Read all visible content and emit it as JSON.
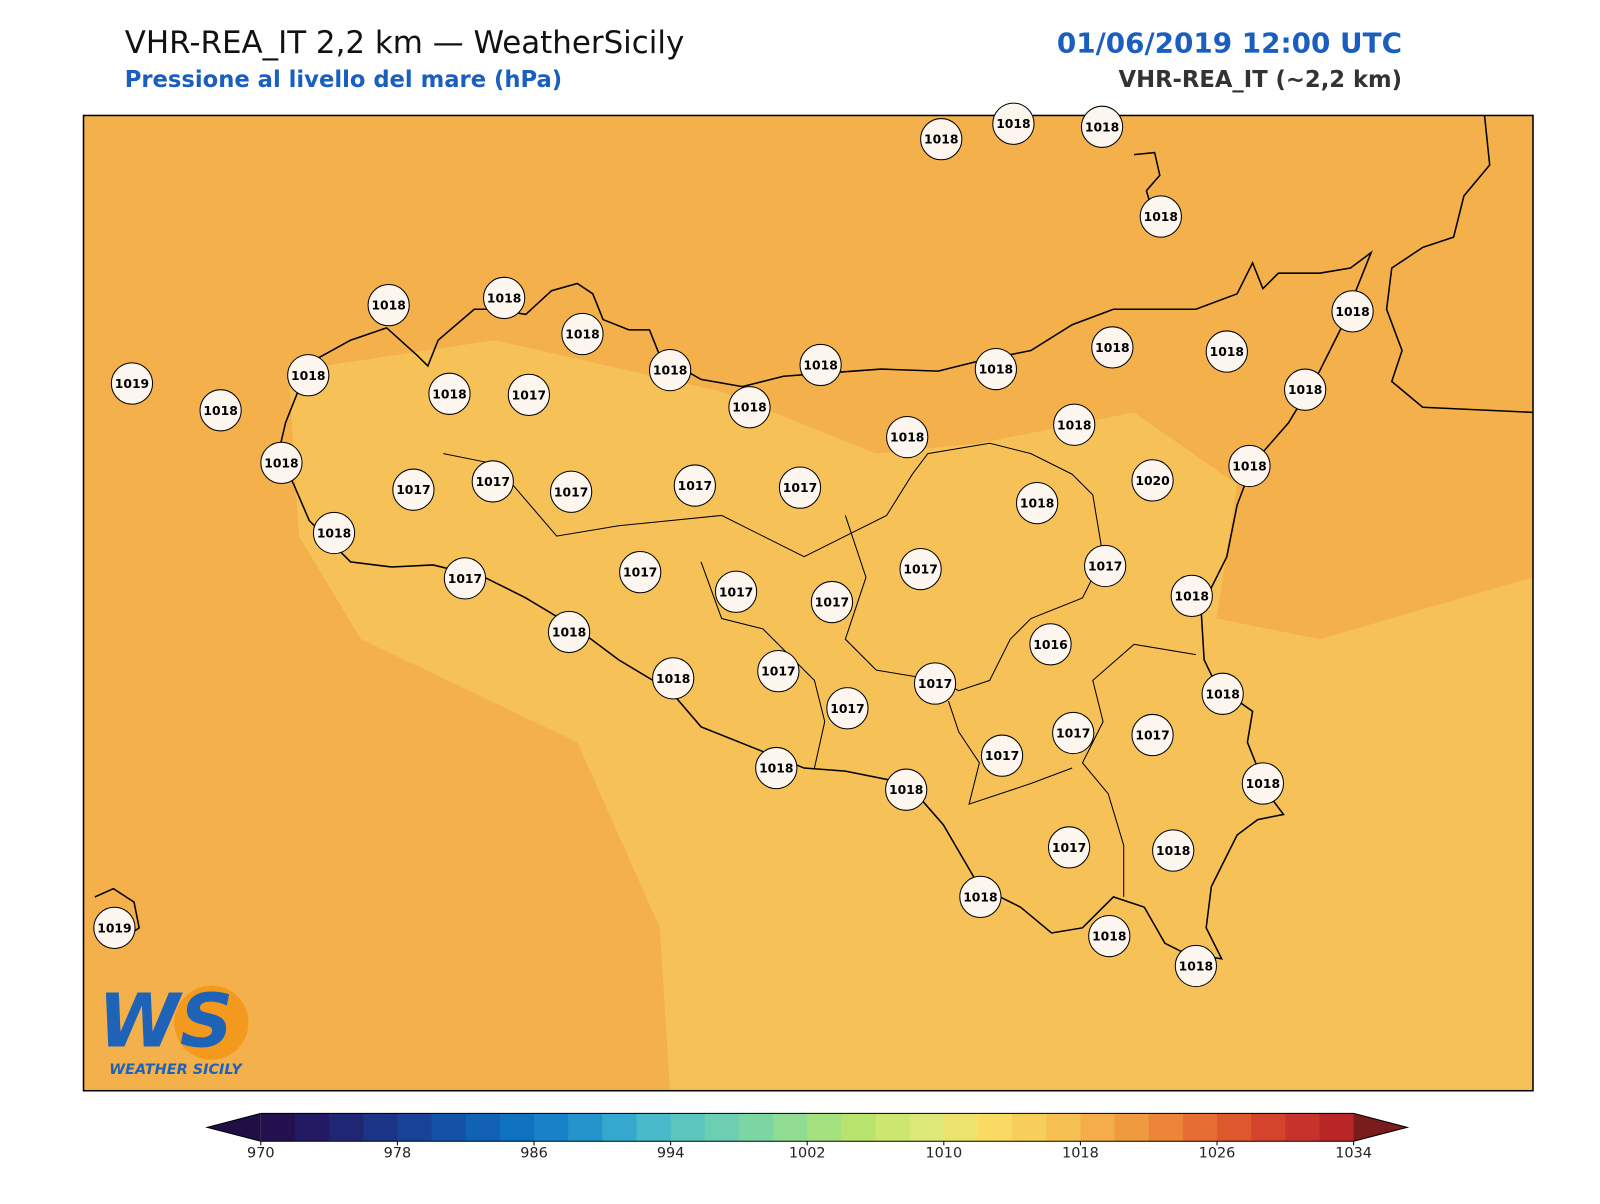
{
  "header": {
    "title": "VHR-REA_IT 2,2 km — WeatherSicily",
    "subtitle": "Pressione al livello del mare (hPa)",
    "date": "01/06/2019 12:00 UTC",
    "model": "VHR-REA_IT (~2,2 km)"
  },
  "map": {
    "background_color": "#f4b04a",
    "light_color": "#f6c257",
    "stations": [
      1018,
      1018,
      1018,
      1018,
      1018,
      1018,
      1018,
      1018,
      1018,
      1018,
      1018,
      1018,
      1018,
      1018,
      1019,
      1018,
      1018,
      1018,
      1017,
      1018,
      1018,
      1018,
      1018,
      1018,
      1017,
      1017,
      1017,
      1017,
      1017,
      1020,
      1018,
      1018,
      1017,
      1017,
      1017,
      1017,
      1017,
      1017,
      1018,
      1018,
      1016,
      1018,
      1017,
      1017,
      1018,
      1017,
      1017,
      1017,
      1017,
      1018,
      1018,
      1018,
      1017,
      1018,
      1018,
      1019,
      1018,
      1018
    ]
  },
  "logo": {
    "mark": "WS",
    "text": "WEATHER SICILY"
  },
  "colorbar": {
    "range": [
      970,
      1034
    ],
    "ticks": [
      970,
      978,
      986,
      994,
      1002,
      1010,
      1018,
      1026,
      1034
    ],
    "under_color": "#1f0f45",
    "over_color": "#7a1c1c",
    "colors": [
      "#22104f",
      "#221a62",
      "#1f2774",
      "#1c3485",
      "#174396",
      "#1352a6",
      "#1162b4",
      "#0f72c0",
      "#1882c8",
      "#2594cc",
      "#35a8cf",
      "#48bac9",
      "#5bc6be",
      "#6ccfb2",
      "#7cd6a4",
      "#90dc92",
      "#a4e17e",
      "#b8e36c",
      "#cce670",
      "#dce978",
      "#ece36e",
      "#f9da63",
      "#f8ce5b",
      "#f6c052",
      "#f4ad48",
      "#f09a40",
      "#ec8538",
      "#e66e32",
      "#de582e",
      "#d4432c",
      "#c7332a",
      "#b82628"
    ]
  }
}
